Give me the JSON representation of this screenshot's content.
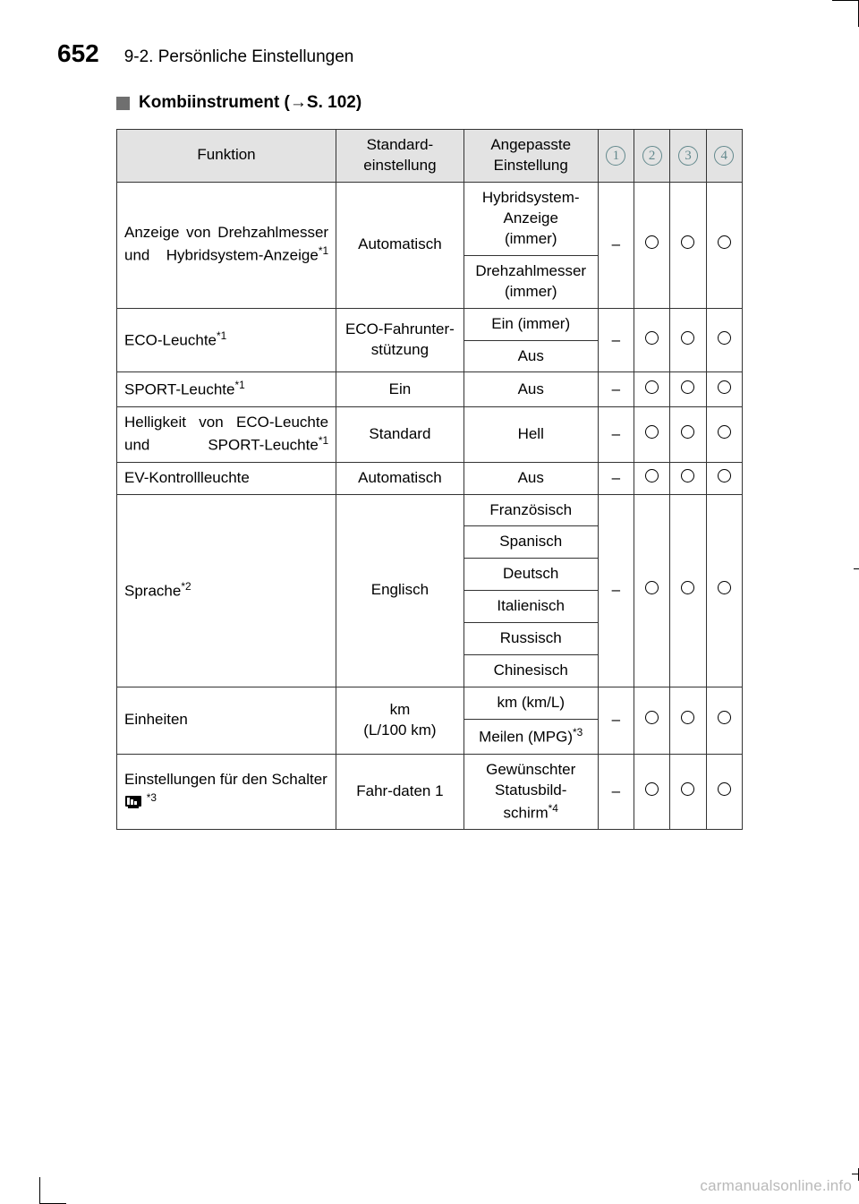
{
  "page_number": "652",
  "section": "9-2. Persönliche Einstellungen",
  "subheading_prefix": "Kombiinstrument (",
  "subheading_ref": "→S. 102",
  "subheading_suffix": ")",
  "headers": {
    "function": "Funktion",
    "default": "Standard-\neinstellung",
    "custom": "Angepasste\nEinstellung",
    "flags": [
      "1",
      "2",
      "3",
      "4"
    ]
  },
  "marks": {
    "dash": "–",
    "circle": "O"
  },
  "rows": [
    {
      "function": "Anzeige von Drehzahlmesser und Hybridsystem-Anzeige*1",
      "function_justify": true,
      "default": "Automatisch",
      "custom": [
        "Hybridsystem-\nAnzeige\n(immer)",
        "Drehzahlmesser\n(immer)"
      ],
      "flags": [
        "–",
        "O",
        "O",
        "O"
      ]
    },
    {
      "function": "ECO-Leuchte*1",
      "default": "ECO-Fahrunter-\nstützung",
      "custom": [
        "Ein (immer)",
        "Aus"
      ],
      "flags": [
        "–",
        "O",
        "O",
        "O"
      ]
    },
    {
      "function": "SPORT-Leuchte*1",
      "default": "Ein",
      "custom": [
        "Aus"
      ],
      "flags": [
        "–",
        "O",
        "O",
        "O"
      ]
    },
    {
      "function": "Helligkeit von ECO-Leuchte und SPORT-Leuchte*1",
      "function_justify": true,
      "default": "Standard",
      "custom": [
        "Hell"
      ],
      "flags": [
        "–",
        "O",
        "O",
        "O"
      ]
    },
    {
      "function": "EV-Kontrollleuchte",
      "default": "Automatisch",
      "custom": [
        "Aus"
      ],
      "flags": [
        "–",
        "O",
        "O",
        "O"
      ]
    },
    {
      "function": "Sprache*2",
      "default": "Englisch",
      "custom": [
        "Französisch",
        "Spanisch",
        "Deutsch",
        "Italienisch",
        "Russisch",
        "Chinesisch"
      ],
      "flags": [
        "–",
        "O",
        "O",
        "O"
      ]
    },
    {
      "function": "Einheiten",
      "default": "km\n(L/100 km)",
      "custom": [
        "km (km/L)",
        "Meilen (MPG)*3"
      ],
      "flags": [
        "–",
        "O",
        "O",
        "O"
      ]
    },
    {
      "function_prefix": "Einstellungen für den Schalter ",
      "function_has_icon": true,
      "function_suffix": " *3",
      "default": "Fahr-daten 1",
      "custom": [
        "Gewünschter\nStatusbild-\nschirm*4"
      ],
      "flags": [
        "–",
        "O",
        "O",
        "O"
      ]
    }
  ],
  "watermark": "carmanualsonline.info"
}
